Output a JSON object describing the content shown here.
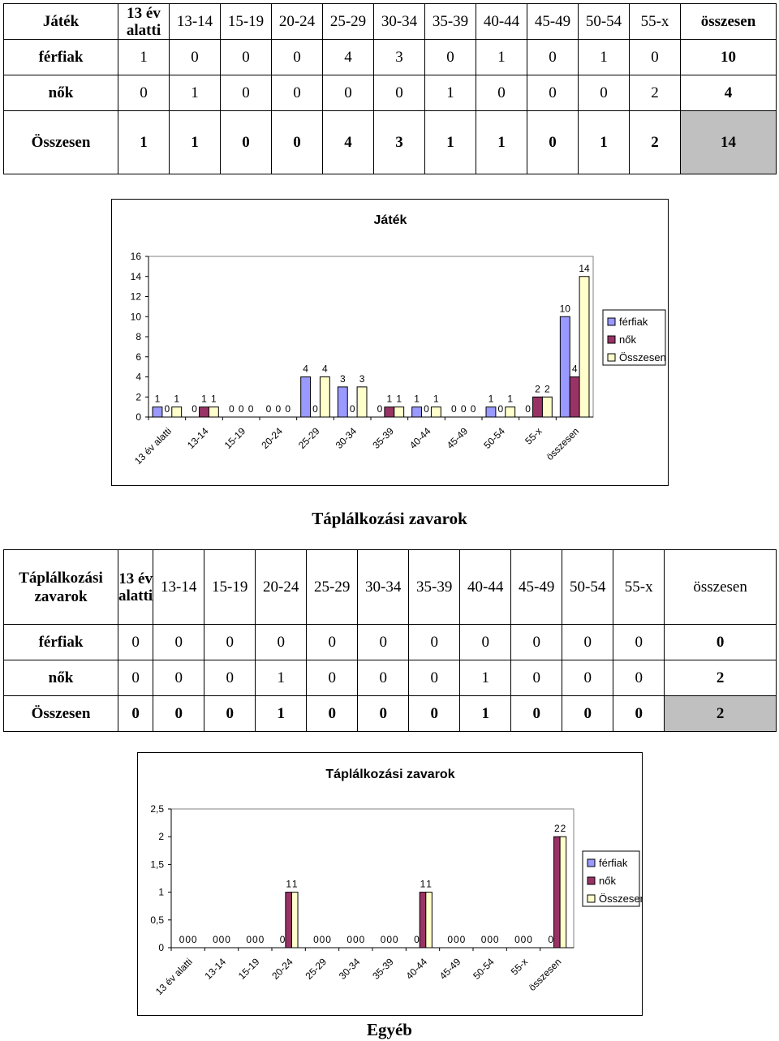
{
  "table1": {
    "headers": [
      "Játék",
      "13 év alatti",
      "13-14",
      "15-19",
      "20-24",
      "25-29",
      "30-34",
      "35-39",
      "40-44",
      "45-49",
      "50-54",
      "55-x",
      "összesen"
    ],
    "rows": [
      {
        "label": "férfiak",
        "values": [
          "1",
          "0",
          "0",
          "0",
          "4",
          "3",
          "0",
          "1",
          "0",
          "1",
          "0",
          "10"
        ]
      },
      {
        "label": "nők",
        "values": [
          "0",
          "1",
          "0",
          "0",
          "0",
          "0",
          "1",
          "0",
          "0",
          "0",
          "2",
          "4"
        ]
      },
      {
        "label": "Összesen",
        "values": [
          "1",
          "1",
          "0",
          "0",
          "4",
          "3",
          "1",
          "1",
          "0",
          "1",
          "2",
          "14"
        ]
      }
    ]
  },
  "heading_taplalkozasi": "Táplálkozási zavarok",
  "table2": {
    "headers": [
      "Táplálkozási zavarok",
      "13 év alatti",
      "13-14",
      "15-19",
      "20-24",
      "25-29",
      "30-34",
      "35-39",
      "40-44",
      "45-49",
      "50-54",
      "55-x",
      "összesen"
    ],
    "rows": [
      {
        "label": "férfiak",
        "values": [
          "0",
          "0",
          "0",
          "0",
          "0",
          "0",
          "0",
          "0",
          "0",
          "0",
          "0",
          "0"
        ]
      },
      {
        "label": "nők",
        "values": [
          "0",
          "0",
          "0",
          "1",
          "0",
          "0",
          "0",
          "1",
          "0",
          "0",
          "0",
          "2"
        ]
      },
      {
        "label": "Összesen",
        "values": [
          "0",
          "0",
          "0",
          "1",
          "0",
          "0",
          "0",
          "1",
          "0",
          "0",
          "0",
          "2"
        ]
      }
    ]
  },
  "heading_egyeb": "Egyéb",
  "chart_data": [
    {
      "type": "bar",
      "title": "Játék",
      "categories": [
        "13 év alatti",
        "13-14",
        "15-19",
        "20-24",
        "25-29",
        "30-34",
        "35-39",
        "40-44",
        "45-49",
        "50-54",
        "55-x",
        "összesen"
      ],
      "series": [
        {
          "name": "férfiak",
          "color": "#9999ff",
          "values": [
            1,
            0,
            0,
            0,
            4,
            3,
            0,
            1,
            0,
            1,
            0,
            10
          ]
        },
        {
          "name": "nők",
          "color": "#993366",
          "values": [
            0,
            1,
            0,
            0,
            0,
            0,
            1,
            0,
            0,
            0,
            2,
            4
          ]
        },
        {
          "name": "Összesen",
          "color": "#ffffcc",
          "values": [
            1,
            1,
            0,
            0,
            4,
            3,
            1,
            1,
            0,
            1,
            2,
            14
          ]
        }
      ],
      "ylim": [
        0,
        16
      ],
      "yticks": [
        "0",
        "2",
        "4",
        "6",
        "8",
        "10",
        "12",
        "14",
        "16"
      ],
      "grid": false,
      "legend": "right",
      "data_labels": true
    },
    {
      "type": "bar",
      "title": "Táplálkozási zavarok",
      "categories": [
        "13 év alatti",
        "13-14",
        "15-19",
        "20-24",
        "25-29",
        "30-34",
        "35-39",
        "40-44",
        "45-49",
        "50-54",
        "55-x",
        "összesen"
      ],
      "series": [
        {
          "name": "férfiak",
          "color": "#9999ff",
          "values": [
            0,
            0,
            0,
            0,
            0,
            0,
            0,
            0,
            0,
            0,
            0,
            0
          ]
        },
        {
          "name": "nők",
          "color": "#993366",
          "values": [
            0,
            0,
            0,
            1,
            0,
            0,
            0,
            1,
            0,
            0,
            0,
            2
          ]
        },
        {
          "name": "Összesen",
          "color": "#ffffcc",
          "values": [
            0,
            0,
            0,
            1,
            0,
            0,
            0,
            1,
            0,
            0,
            0,
            2
          ]
        }
      ],
      "ylim": [
        0,
        2.5
      ],
      "yticks": [
        "0",
        "0,5",
        "1",
        "1,5",
        "2",
        "2,5"
      ],
      "grid": false,
      "legend": "right",
      "data_labels": true
    }
  ]
}
